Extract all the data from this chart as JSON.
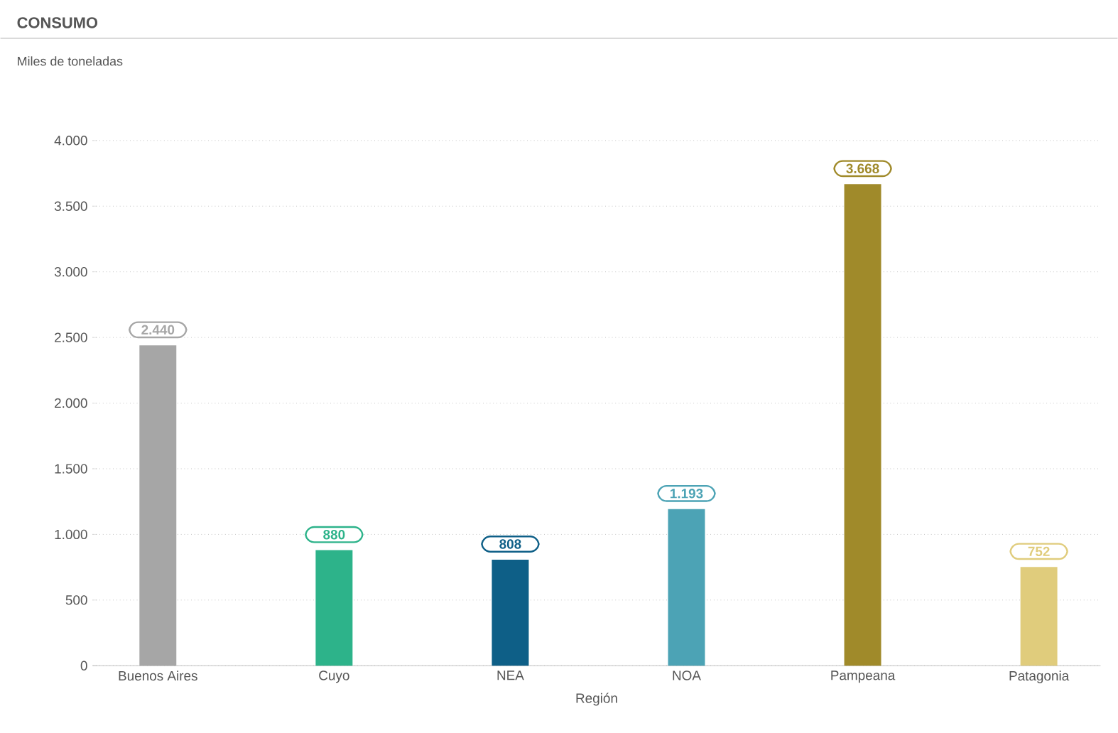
{
  "chart_data": {
    "type": "bar",
    "title": "CONSUMO",
    "subtitle": "Miles de toneladas",
    "xlabel": "Región",
    "categories": [
      "Buenos Aires",
      "Cuyo",
      "NEA",
      "NOA",
      "Pampeana",
      "Patagonia"
    ],
    "values": [
      2440,
      880,
      808,
      1193,
      3668,
      752
    ],
    "colors": [
      "#a6a6a6",
      "#2db38a",
      "#0e5f87",
      "#4ca3b5",
      "#a08a2a",
      "#e0cc7c"
    ],
    "value_labels": [
      "2.440",
      "880",
      "808",
      "1.193",
      "3.668",
      "752"
    ],
    "ylim": [
      0,
      4000
    ],
    "yticks": [
      {
        "value": 0,
        "label": "0"
      },
      {
        "value": 500,
        "label": "500"
      },
      {
        "value": 1000,
        "label": "1.000"
      },
      {
        "value": 1500,
        "label": "1.500"
      },
      {
        "value": 2000,
        "label": "2.000"
      },
      {
        "value": 2500,
        "label": "2.500"
      },
      {
        "value": 3000,
        "label": "3.000"
      },
      {
        "value": 3500,
        "label": "3.500"
      },
      {
        "value": 4000,
        "label": "4.000"
      }
    ],
    "grid": "y"
  }
}
